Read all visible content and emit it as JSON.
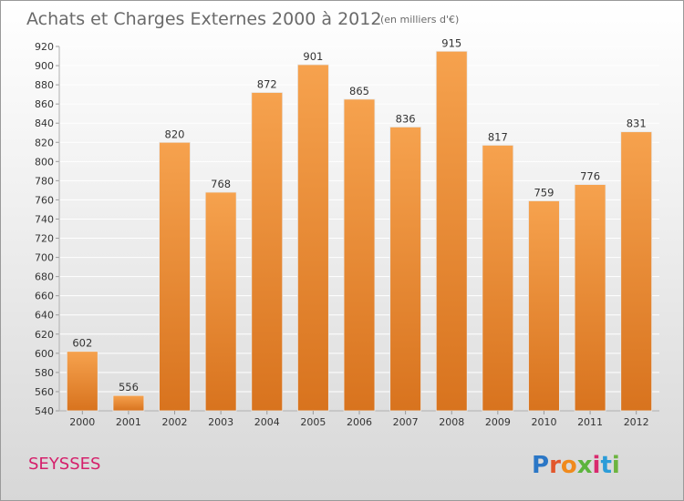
{
  "chart_data": {
    "type": "bar",
    "title": "Achats et Charges Externes 2000 à 2012",
    "subtitle": "(en milliers d'€)",
    "categories": [
      "2000",
      "2001",
      "2002",
      "2003",
      "2004",
      "2005",
      "2006",
      "2007",
      "2008",
      "2009",
      "2010",
      "2011",
      "2012"
    ],
    "values": [
      602,
      556,
      820,
      768,
      872,
      901,
      865,
      836,
      915,
      817,
      759,
      776,
      831
    ],
    "ylim": [
      540,
      920
    ],
    "ytick_step": 20,
    "grid": true,
    "xlabel": "",
    "ylabel": "",
    "bar_color_top": "#f6a24e",
    "bar_color_bottom": "#d8731e"
  },
  "location_label": "SEYSSES",
  "logo": {
    "text": "Proxiti",
    "letter_colors": [
      "#2b77c6",
      "#e2562c",
      "#f08a1c",
      "#5cb43d",
      "#d92a6e",
      "#2b9cd8",
      "#6cb43f"
    ]
  }
}
